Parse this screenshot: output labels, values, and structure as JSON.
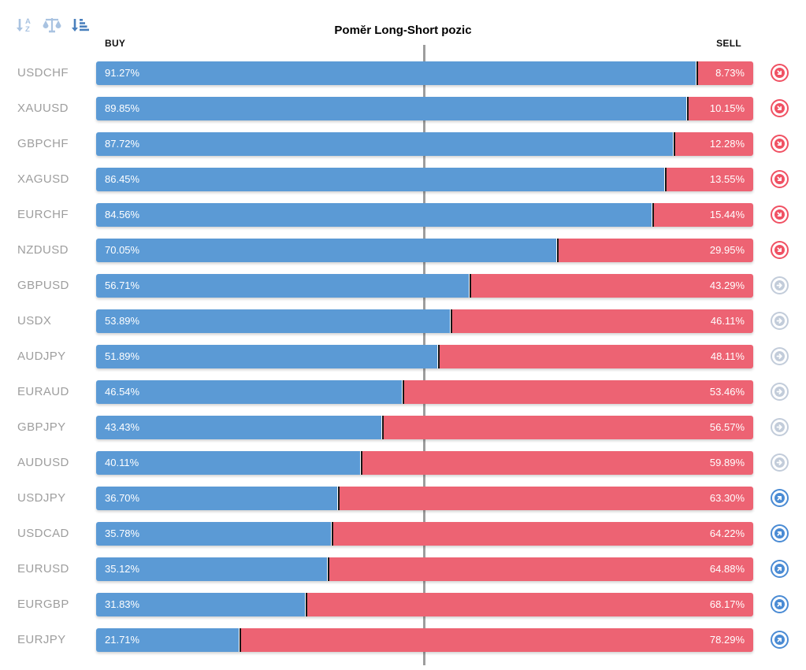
{
  "title": "Pomĕr Long-Short pozic",
  "columns": {
    "buy": "BUY",
    "sell": "SELL"
  },
  "toolbar": {
    "icons": [
      {
        "name": "sort-alpha-asc-icon",
        "state": "inactive"
      },
      {
        "name": "balance-scale-icon",
        "state": "inactive"
      },
      {
        "name": "sort-amount-icon",
        "state": "active"
      }
    ]
  },
  "colors": {
    "buy_bar": "#5b9ad5",
    "sell_bar": "#ed6373",
    "bar_divider": "#161616",
    "center_line": "#9d9d9d",
    "pair_label": "#9e9e9e",
    "signal_down": "#f05163",
    "signal_neutral": "#c2ccda",
    "signal_up": "#4a8bd4",
    "toolbar_inactive": "#a9c3e1",
    "toolbar_active": "#4a80bd"
  },
  "rows": [
    {
      "pair": "USDCHF",
      "buy": 91.27,
      "sell": 8.73,
      "buy_label": "91.27%",
      "sell_label": "8.73%",
      "signal": "down"
    },
    {
      "pair": "XAUUSD",
      "buy": 89.85,
      "sell": 10.15,
      "buy_label": "89.85%",
      "sell_label": "10.15%",
      "signal": "down"
    },
    {
      "pair": "GBPCHF",
      "buy": 87.72,
      "sell": 12.28,
      "buy_label": "87.72%",
      "sell_label": "12.28%",
      "signal": "down"
    },
    {
      "pair": "XAGUSD",
      "buy": 86.45,
      "sell": 13.55,
      "buy_label": "86.45%",
      "sell_label": "13.55%",
      "signal": "down"
    },
    {
      "pair": "EURCHF",
      "buy": 84.56,
      "sell": 15.44,
      "buy_label": "84.56%",
      "sell_label": "15.44%",
      "signal": "down"
    },
    {
      "pair": "NZDUSD",
      "buy": 70.05,
      "sell": 29.95,
      "buy_label": "70.05%",
      "sell_label": "29.95%",
      "signal": "down"
    },
    {
      "pair": "GBPUSD",
      "buy": 56.71,
      "sell": 43.29,
      "buy_label": "56.71%",
      "sell_label": "43.29%",
      "signal": "neutral"
    },
    {
      "pair": "USDX",
      "buy": 53.89,
      "sell": 46.11,
      "buy_label": "53.89%",
      "sell_label": "46.11%",
      "signal": "neutral"
    },
    {
      "pair": "AUDJPY",
      "buy": 51.89,
      "sell": 48.11,
      "buy_label": "51.89%",
      "sell_label": "48.11%",
      "signal": "neutral"
    },
    {
      "pair": "EURAUD",
      "buy": 46.54,
      "sell": 53.46,
      "buy_label": "46.54%",
      "sell_label": "53.46%",
      "signal": "neutral"
    },
    {
      "pair": "GBPJPY",
      "buy": 43.43,
      "sell": 56.57,
      "buy_label": "43.43%",
      "sell_label": "56.57%",
      "signal": "neutral"
    },
    {
      "pair": "AUDUSD",
      "buy": 40.11,
      "sell": 59.89,
      "buy_label": "40.11%",
      "sell_label": "59.89%",
      "signal": "neutral"
    },
    {
      "pair": "USDJPY",
      "buy": 36.7,
      "sell": 63.3,
      "buy_label": "36.70%",
      "sell_label": "63.30%",
      "signal": "up"
    },
    {
      "pair": "USDCAD",
      "buy": 35.78,
      "sell": 64.22,
      "buy_label": "35.78%",
      "sell_label": "64.22%",
      "signal": "up"
    },
    {
      "pair": "EURUSD",
      "buy": 35.12,
      "sell": 64.88,
      "buy_label": "35.12%",
      "sell_label": "64.88%",
      "signal": "up"
    },
    {
      "pair": "EURGBP",
      "buy": 31.83,
      "sell": 68.17,
      "buy_label": "31.83%",
      "sell_label": "68.17%",
      "signal": "up"
    },
    {
      "pair": "EURJPY",
      "buy": 21.71,
      "sell": 78.29,
      "buy_label": "21.71%",
      "sell_label": "78.29%",
      "signal": "up"
    }
  ],
  "chart_data": {
    "type": "bar",
    "orientation": "horizontal",
    "stacked": true,
    "title": "Pomĕr Long-Short pozic",
    "categories": [
      "USDCHF",
      "XAUUSD",
      "GBPCHF",
      "XAGUSD",
      "EURCHF",
      "NZDUSD",
      "GBPUSD",
      "USDX",
      "AUDJPY",
      "EURAUD",
      "GBPJPY",
      "AUDUSD",
      "USDJPY",
      "USDCAD",
      "EURUSD",
      "EURGBP",
      "EURJPY"
    ],
    "series": [
      {
        "name": "BUY",
        "color": "#5b9ad5",
        "values": [
          91.27,
          89.85,
          87.72,
          86.45,
          84.56,
          70.05,
          56.71,
          53.89,
          51.89,
          46.54,
          43.43,
          40.11,
          36.7,
          35.78,
          35.12,
          31.83,
          21.71
        ]
      },
      {
        "name": "SELL",
        "color": "#ed6373",
        "values": [
          8.73,
          10.15,
          12.28,
          13.55,
          15.44,
          29.95,
          43.29,
          46.11,
          48.11,
          53.46,
          56.57,
          59.89,
          63.3,
          64.22,
          64.88,
          68.17,
          78.29
        ]
      }
    ],
    "xlim": [
      0,
      100
    ],
    "grid": "center-line-only",
    "legend_position": "top (BUY left, SELL right)",
    "annotations": "per-row contrarian signal arrows: down-right (red) for crowd-long, right (gray) for neutral, up-right (blue) for crowd-short"
  }
}
